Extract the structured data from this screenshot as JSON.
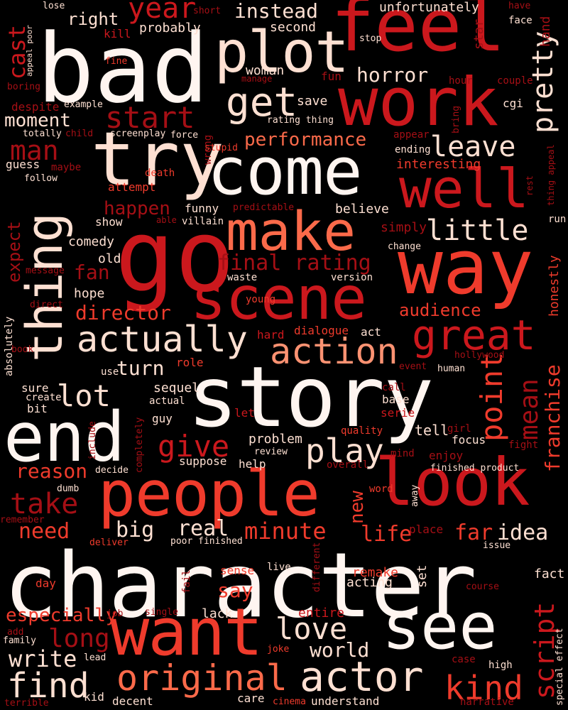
{
  "title": "",
  "palette": [
    "#fff5f0",
    "#fee0d2",
    "#fcbba1",
    "#fc9272",
    "#fb6a4a",
    "#ef3b2c",
    "#cb181d",
    "#a50f15",
    "#67000d"
  ],
  "words": [
    {
      "text": "character",
      "color": "#fff5f0"
    },
    {
      "text": "story",
      "color": "#fff5f0"
    },
    {
      "text": "bad",
      "color": "#fff5f0"
    },
    {
      "text": "people",
      "color": "#ef3b2c"
    },
    {
      "text": "look",
      "color": "#cb181d"
    },
    {
      "text": "feel",
      "color": "#cb181d"
    },
    {
      "text": "come",
      "color": "#fff5f0"
    },
    {
      "text": "go",
      "color": "#cb181d"
    },
    {
      "text": "way",
      "color": "#ef3b2c"
    },
    {
      "text": "end",
      "color": "#fff5f0"
    },
    {
      "text": "work",
      "color": "#cb181d"
    },
    {
      "text": "want",
      "color": "#ef3b2c"
    },
    {
      "text": "see",
      "color": "#fff5f0"
    },
    {
      "text": "thing",
      "color": "#fee0d2"
    },
    {
      "text": "scene",
      "color": "#cb181d"
    },
    {
      "text": "try",
      "color": "#fee0d2"
    },
    {
      "text": "make",
      "color": "#fb6a4a"
    },
    {
      "text": "well",
      "color": "#cb181d"
    },
    {
      "text": "plot",
      "color": "#fee0d2"
    },
    {
      "text": "actor",
      "color": "#fee0d2"
    },
    {
      "text": "original",
      "color": "#fb6a4a"
    },
    {
      "text": "actually",
      "color": "#fee0d2"
    },
    {
      "text": "great",
      "color": "#cb181d"
    },
    {
      "text": "get",
      "color": "#fee0d2"
    },
    {
      "text": "action",
      "color": "#fc9272"
    },
    {
      "text": "love",
      "color": "#fee0d2"
    },
    {
      "text": "find",
      "color": "#fee0d2"
    },
    {
      "text": "play",
      "color": "#fee0d2"
    },
    {
      "text": "kind",
      "color": "#ef3b2c"
    },
    {
      "text": "point",
      "color": "#ef3b2c"
    },
    {
      "text": "lot",
      "color": "#fee0d2"
    },
    {
      "text": "give",
      "color": "#cb181d"
    },
    {
      "text": "take",
      "color": "#a50f15"
    },
    {
      "text": "start",
      "color": "#a50f15"
    },
    {
      "text": "little",
      "color": "#fee0d2"
    },
    {
      "text": "year",
      "color": "#cb181d"
    },
    {
      "text": "pretty",
      "color": "#fee0d2"
    },
    {
      "text": "leave",
      "color": "#fee0d2"
    },
    {
      "text": "man",
      "color": "#a50f15"
    },
    {
      "text": "script",
      "color": "#cb181d"
    },
    {
      "text": "mean",
      "color": "#a50f15"
    },
    {
      "text": "minute",
      "color": "#ef3b2c"
    },
    {
      "text": "world",
      "color": "#fee0d2"
    },
    {
      "text": "long",
      "color": "#a50f15"
    },
    {
      "text": "write",
      "color": "#fee0d2"
    },
    {
      "text": "cast",
      "color": "#cb181d"
    },
    {
      "text": "performance",
      "color": "#fb6a4a"
    },
    {
      "text": "horror",
      "color": "#fee0d2"
    },
    {
      "text": "final rating",
      "color": "#a50f15"
    },
    {
      "text": "director",
      "color": "#ef3b2c"
    },
    {
      "text": "audience",
      "color": "#ef3b2c"
    },
    {
      "text": "franchise",
      "color": "#ef3b2c"
    },
    {
      "text": "instead",
      "color": "#fee0d2"
    },
    {
      "text": "reason",
      "color": "#ef3b2c"
    },
    {
      "text": "need",
      "color": "#ef3b2c"
    },
    {
      "text": "big",
      "color": "#fee0d2"
    },
    {
      "text": "real",
      "color": "#fee0d2"
    },
    {
      "text": "life",
      "color": "#ef3b2c"
    },
    {
      "text": "far",
      "color": "#ef3b2c"
    },
    {
      "text": "idea",
      "color": "#fee0d2"
    },
    {
      "text": "say",
      "color": "#ef3b2c"
    },
    {
      "text": "especially",
      "color": "#ef3b2c"
    },
    {
      "text": "right",
      "color": "#fee0d2"
    },
    {
      "text": "moment",
      "color": "#fee0d2"
    },
    {
      "text": "happen",
      "color": "#a50f15"
    },
    {
      "text": "turn",
      "color": "#fee0d2"
    },
    {
      "text": "fan",
      "color": "#a50f15"
    },
    {
      "text": "new",
      "color": "#ef3b2c"
    },
    {
      "text": "expect",
      "color": "#a50f15"
    },
    {
      "text": "woman",
      "color": "#fee0d2"
    },
    {
      "text": "comedy",
      "color": "#fee0d2"
    },
    {
      "text": "old",
      "color": "#fee0d2"
    },
    {
      "text": "hope",
      "color": "#fee0d2"
    },
    {
      "text": "sequel",
      "color": "#fee0d2"
    },
    {
      "text": "problem",
      "color": "#fee0d2"
    },
    {
      "text": "tell",
      "color": "#fee0d2"
    },
    {
      "text": "interesting",
      "color": "#ef3b2c"
    },
    {
      "text": "unfortunately",
      "color": "#fee0d2"
    },
    {
      "text": "second",
      "color": "#fee0d2"
    },
    {
      "text": "probably",
      "color": "#fee0d2"
    },
    {
      "text": "save",
      "color": "#fee0d2"
    },
    {
      "text": "funny",
      "color": "#fee0d2"
    },
    {
      "text": "simply",
      "color": "#a50f15"
    },
    {
      "text": "believe",
      "color": "#fee0d2"
    },
    {
      "text": "honestly",
      "color": "#ef3b2c"
    },
    {
      "text": "remake",
      "color": "#ef3b2c"
    },
    {
      "text": "acting",
      "color": "#fee0d2"
    },
    {
      "text": "set",
      "color": "#fee0d2"
    },
    {
      "text": "fact",
      "color": "#fee0d2"
    },
    {
      "text": "entire",
      "color": "#cb181d"
    },
    {
      "text": "lack",
      "color": "#fee0d2"
    },
    {
      "text": "sense",
      "color": "#ef3b2c"
    },
    {
      "text": "kill",
      "color": "#cb181d"
    },
    {
      "text": "star",
      "color": "#a50f15"
    },
    {
      "text": "hand",
      "color": "#a50f15"
    },
    {
      "text": "show",
      "color": "#fee0d2"
    },
    {
      "text": "attempt",
      "color": "#ef3b2c"
    },
    {
      "text": "death",
      "color": "#ef3b2c"
    },
    {
      "text": "villain",
      "color": "#fee0d2"
    },
    {
      "text": "waste",
      "color": "#fee0d2"
    },
    {
      "text": "version",
      "color": "#fee0d2"
    },
    {
      "text": "young",
      "color": "#ef3b2c"
    },
    {
      "text": "hard",
      "color": "#cb181d"
    },
    {
      "text": "dialogue",
      "color": "#ef3b2c"
    },
    {
      "text": "act",
      "color": "#fee0d2"
    },
    {
      "text": "role",
      "color": "#ef3b2c"
    },
    {
      "text": "use",
      "color": "#fee0d2"
    },
    {
      "text": "sure",
      "color": "#fee0d2"
    },
    {
      "text": "create",
      "color": "#fee0d2"
    },
    {
      "text": "bit",
      "color": "#fee0d2"
    },
    {
      "text": "actual",
      "color": "#fee0d2"
    },
    {
      "text": "guy",
      "color": "#fee0d2"
    },
    {
      "text": "let",
      "color": "#cb181d"
    },
    {
      "text": "base",
      "color": "#fee0d2"
    },
    {
      "text": "serie",
      "color": "#cb181d"
    },
    {
      "text": "call",
      "color": "#a50f15"
    },
    {
      "text": "quality",
      "color": "#ef3b2c"
    },
    {
      "text": "review",
      "color": "#fee0d2"
    },
    {
      "text": "suppose",
      "color": "#fee0d2"
    },
    {
      "text": "help",
      "color": "#fee0d2"
    },
    {
      "text": "mind",
      "color": "#a50f15"
    },
    {
      "text": "enjoy",
      "color": "#a50f15"
    },
    {
      "text": "focus",
      "color": "#fee0d2"
    },
    {
      "text": "fight",
      "color": "#a50f15"
    },
    {
      "text": "girl",
      "color": "#a50f15"
    },
    {
      "text": "finished product",
      "color": "#fee0d2"
    },
    {
      "text": "overall",
      "color": "#a50f15"
    },
    {
      "text": "decide",
      "color": "#fee0d2"
    },
    {
      "text": "dumb",
      "color": "#fee0d2"
    },
    {
      "text": "word",
      "color": "#ef3b2c"
    },
    {
      "text": "away",
      "color": "#fee0d2"
    },
    {
      "text": "remember",
      "color": "#a50f15"
    },
    {
      "text": "deliver",
      "color": "#ef3b2c"
    },
    {
      "text": "poor finished",
      "color": "#fee0d2"
    },
    {
      "text": "place",
      "color": "#a50f15"
    },
    {
      "text": "issue",
      "color": "#fee0d2"
    },
    {
      "text": "live",
      "color": "#fee0d2"
    },
    {
      "text": "different",
      "color": "#a50f15"
    },
    {
      "text": "fail",
      "color": "#a50f15"
    },
    {
      "text": "course",
      "color": "#a50f15"
    },
    {
      "text": "day",
      "color": "#ef3b2c"
    },
    {
      "text": "job",
      "color": "#a50f15"
    },
    {
      "text": "single",
      "color": "#a50f15"
    },
    {
      "text": "add",
      "color": "#a50f15"
    },
    {
      "text": "family",
      "color": "#fee0d2"
    },
    {
      "text": "lead",
      "color": "#fee0d2"
    },
    {
      "text": "joke",
      "color": "#ef3b2c"
    },
    {
      "text": "case",
      "color": "#a50f15"
    },
    {
      "text": "high",
      "color": "#fee0d2"
    },
    {
      "text": "special effect",
      "color": "#fee0d2"
    },
    {
      "text": "terrible",
      "color": "#a50f15"
    },
    {
      "text": "kid",
      "color": "#fee0d2"
    },
    {
      "text": "decent",
      "color": "#fee0d2"
    },
    {
      "text": "care",
      "color": "#fee0d2"
    },
    {
      "text": "cinema",
      "color": "#ef3b2c"
    },
    {
      "text": "understand",
      "color": "#fee0d2"
    },
    {
      "text": "narrative",
      "color": "#a50f15"
    },
    {
      "text": "lose",
      "color": "#fee0d2"
    },
    {
      "text": "short",
      "color": "#a50f15"
    },
    {
      "text": "appeal poor",
      "color": "#fee0d2"
    },
    {
      "text": "fine",
      "color": "#ef3b2c"
    },
    {
      "text": "boring",
      "color": "#a50f15"
    },
    {
      "text": "manage",
      "color": "#a50f15"
    },
    {
      "text": "fun",
      "color": "#a50f15"
    },
    {
      "text": "stop",
      "color": "#fee0d2"
    },
    {
      "text": "hour",
      "color": "#a50f15"
    },
    {
      "text": "couple",
      "color": "#a50f15"
    },
    {
      "text": "have",
      "color": "#a50f15"
    },
    {
      "text": "face",
      "color": "#fee0d2"
    },
    {
      "text": "despite",
      "color": "#a50f15"
    },
    {
      "text": "example",
      "color": "#fee0d2"
    },
    {
      "text": "totally",
      "color": "#fee0d2"
    },
    {
      "text": "child",
      "color": "#a50f15"
    },
    {
      "text": "screenplay",
      "color": "#fee0d2"
    },
    {
      "text": "force",
      "color": "#fee0d2"
    },
    {
      "text": "wrong",
      "color": "#a50f15"
    },
    {
      "text": "stupid",
      "color": "#ef3b2c"
    },
    {
      "text": "rating thing",
      "color": "#fee0d2"
    },
    {
      "text": "appear",
      "color": "#a50f15"
    },
    {
      "text": "ending",
      "color": "#fee0d2"
    },
    {
      "text": "cgi",
      "color": "#fee0d2"
    },
    {
      "text": "bring",
      "color": "#a50f15"
    },
    {
      "text": "thing appeal",
      "color": "#a50f15"
    },
    {
      "text": "rest",
      "color": "#a50f15"
    },
    {
      "text": "run",
      "color": "#fee0d2"
    },
    {
      "text": "guess",
      "color": "#fee0d2"
    },
    {
      "text": "maybe",
      "color": "#a50f15"
    },
    {
      "text": "follow",
      "color": "#fee0d2"
    },
    {
      "text": "predictable",
      "color": "#a50f15"
    },
    {
      "text": "able",
      "color": "#a50f15"
    },
    {
      "text": "change",
      "color": "#fee0d2"
    },
    {
      "text": "message",
      "color": "#a50f15"
    },
    {
      "text": "direct",
      "color": "#a50f15"
    },
    {
      "text": "absolutely",
      "color": "#fee0d2"
    },
    {
      "text": "book",
      "color": "#a50f15"
    },
    {
      "text": "hollywood",
      "color": "#a50f15"
    },
    {
      "text": "event",
      "color": "#a50f15"
    },
    {
      "text": "human",
      "color": "#fee0d2"
    },
    {
      "text": "completely",
      "color": "#a50f15"
    },
    {
      "text": "include",
      "color": "#a50f15"
    }
  ]
}
